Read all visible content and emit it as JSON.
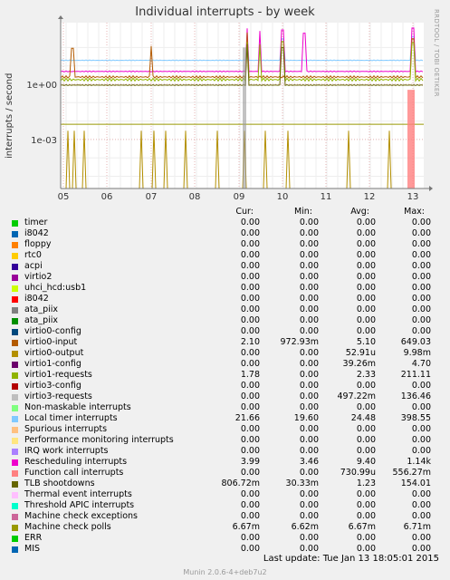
{
  "chart_data": {
    "type": "line",
    "title": "Individual interrupts - by week",
    "ylabel": "interrupts / second",
    "yscale": "log",
    "yticks": [
      "1e+00",
      "1e-03"
    ],
    "xticks": [
      "05",
      "06",
      "07",
      "08",
      "09",
      "10",
      "11",
      "12",
      "13"
    ],
    "grid": true,
    "series_shown": [
      {
        "name": "timer",
        "color": "#00cc00",
        "level": 0
      },
      {
        "name": "Local timer interrupts",
        "color": "#7777ff",
        "level": 20
      },
      {
        "name": "Rescheduling interrupts",
        "color": "#cc00cc",
        "level": 5
      },
      {
        "name": "virtio1-requests",
        "color": "#8a8a00",
        "level": 2
      },
      {
        "name": "virtio0-input",
        "color": "#aa6600",
        "level": 3
      },
      {
        "name": "TLB shootdowns",
        "color": "#6b5e00",
        "level": 1
      },
      {
        "name": "Machine check polls",
        "color": "#a08000",
        "level": 0.0067
      },
      {
        "name": "Function call interrupts",
        "color": "#ee8888",
        "level": 0
      }
    ]
  },
  "rrdtool_label": "RRDTOOL / TOBI OETIKER",
  "legend": {
    "headers": {
      "cur": "Cur:",
      "min": "Min:",
      "avg": "Avg:",
      "max": "Max:"
    },
    "rows": [
      {
        "name": "timer",
        "color": "#00cc00",
        "cur": "0.00",
        "min": "0.00",
        "avg": "0.00",
        "max": "0.00"
      },
      {
        "name": "i8042",
        "color": "#0066b3",
        "cur": "0.00",
        "min": "0.00",
        "avg": "0.00",
        "max": "0.00"
      },
      {
        "name": "floppy",
        "color": "#ff8000",
        "cur": "0.00",
        "min": "0.00",
        "avg": "0.00",
        "max": "0.00"
      },
      {
        "name": "rtc0",
        "color": "#ffcc00",
        "cur": "0.00",
        "min": "0.00",
        "avg": "0.00",
        "max": "0.00"
      },
      {
        "name": "acpi",
        "color": "#330099",
        "cur": "0.00",
        "min": "0.00",
        "avg": "0.00",
        "max": "0.00"
      },
      {
        "name": "virtio2",
        "color": "#990099",
        "cur": "0.00",
        "min": "0.00",
        "avg": "0.00",
        "max": "0.00"
      },
      {
        "name": "uhci_hcd:usb1",
        "color": "#ccff00",
        "cur": "0.00",
        "min": "0.00",
        "avg": "0.00",
        "max": "0.00"
      },
      {
        "name": "i8042",
        "color": "#ff0000",
        "cur": "0.00",
        "min": "0.00",
        "avg": "0.00",
        "max": "0.00"
      },
      {
        "name": "ata_piix",
        "color": "#808080",
        "cur": "0.00",
        "min": "0.00",
        "avg": "0.00",
        "max": "0.00"
      },
      {
        "name": "ata_piix",
        "color": "#008f00",
        "cur": "0.00",
        "min": "0.00",
        "avg": "0.00",
        "max": "0.00"
      },
      {
        "name": "virtio0-config",
        "color": "#00487d",
        "cur": "0.00",
        "min": "0.00",
        "avg": "0.00",
        "max": "0.00"
      },
      {
        "name": "virtio0-input",
        "color": "#b35a00",
        "cur": "2.10",
        "min": "972.93m",
        "avg": "5.10",
        "max": "649.03"
      },
      {
        "name": "virtio0-output",
        "color": "#b38f00",
        "cur": "0.00",
        "min": "0.00",
        "avg": "52.91u",
        "max": "9.98m"
      },
      {
        "name": "virtio1-config",
        "color": "#6b006b",
        "cur": "0.00",
        "min": "0.00",
        "avg": "39.26m",
        "max": "4.70"
      },
      {
        "name": "virtio1-requests",
        "color": "#8fb300",
        "cur": "1.78",
        "min": "0.00",
        "avg": "2.33",
        "max": "211.11"
      },
      {
        "name": "virtio3-config",
        "color": "#b30000",
        "cur": "0.00",
        "min": "0.00",
        "avg": "0.00",
        "max": "0.00"
      },
      {
        "name": "virtio3-requests",
        "color": "#bebebe",
        "cur": "0.00",
        "min": "0.00",
        "avg": "497.22m",
        "max": "136.46"
      },
      {
        "name": "Non-maskable interrupts",
        "color": "#80ff80",
        "cur": "0.00",
        "min": "0.00",
        "avg": "0.00",
        "max": "0.00"
      },
      {
        "name": "Local timer interrupts",
        "color": "#80c9ff",
        "cur": "21.66",
        "min": "19.60",
        "avg": "24.48",
        "max": "398.55"
      },
      {
        "name": "Spurious interrupts",
        "color": "#ffc080",
        "cur": "0.00",
        "min": "0.00",
        "avg": "0.00",
        "max": "0.00"
      },
      {
        "name": "Performance monitoring interrupts",
        "color": "#ffe680",
        "cur": "0.00",
        "min": "0.00",
        "avg": "0.00",
        "max": "0.00"
      },
      {
        "name": "IRQ work interrupts",
        "color": "#aa80ff",
        "cur": "0.00",
        "min": "0.00",
        "avg": "0.00",
        "max": "0.00"
      },
      {
        "name": "Rescheduling interrupts",
        "color": "#ee00cc",
        "cur": "3.99",
        "min": "3.46",
        "avg": "9.40",
        "max": "1.14k"
      },
      {
        "name": "Function call interrupts",
        "color": "#ff8080",
        "cur": "0.00",
        "min": "0.00",
        "avg": "730.99u",
        "max": "556.27m"
      },
      {
        "name": "TLB shootdowns",
        "color": "#666600",
        "cur": "806.72m",
        "min": "30.33m",
        "avg": "1.23",
        "max": "154.01"
      },
      {
        "name": "Thermal event interrupts",
        "color": "#ffbfff",
        "cur": "0.00",
        "min": "0.00",
        "avg": "0.00",
        "max": "0.00"
      },
      {
        "name": "Threshold APIC interrupts",
        "color": "#00ffcc",
        "cur": "0.00",
        "min": "0.00",
        "avg": "0.00",
        "max": "0.00"
      },
      {
        "name": "Machine check exceptions",
        "color": "#cc6699",
        "cur": "0.00",
        "min": "0.00",
        "avg": "0.00",
        "max": "0.00"
      },
      {
        "name": "Machine check polls",
        "color": "#999900",
        "cur": "6.67m",
        "min": "6.62m",
        "avg": "6.67m",
        "max": "6.71m"
      },
      {
        "name": "ERR",
        "color": "#00cc00",
        "cur": "0.00",
        "min": "0.00",
        "avg": "0.00",
        "max": "0.00"
      },
      {
        "name": "MIS",
        "color": "#0066b3",
        "cur": "0.00",
        "min": "0.00",
        "avg": "0.00",
        "max": "0.00"
      }
    ]
  },
  "last_update": "Last update:  Tue Jan 13 18:05:01 2015",
  "footer": "Munin 2.0.6-4+deb7u2"
}
